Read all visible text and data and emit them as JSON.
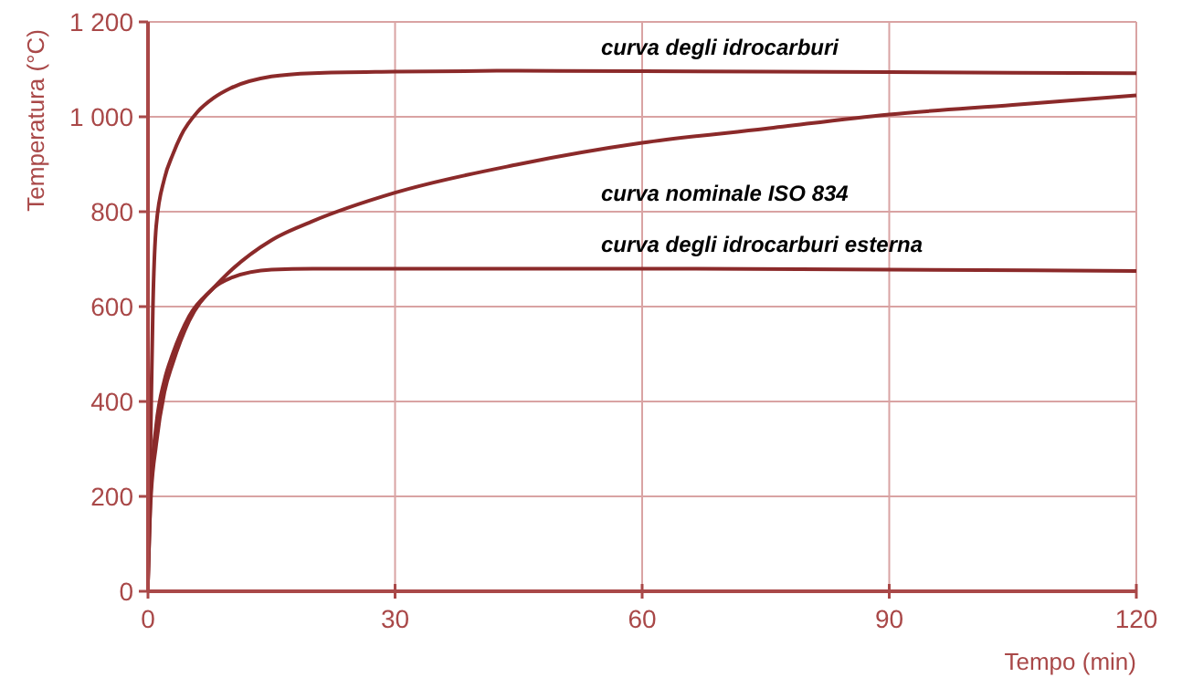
{
  "chart_data": {
    "type": "line",
    "xlabel": "Tempo (min)",
    "ylabel": "Temperatura (°C)",
    "xlim": [
      0,
      120
    ],
    "ylim": [
      0,
      1200
    ],
    "xticks": [
      0,
      30,
      60,
      90,
      120
    ],
    "yticks": [
      0,
      200,
      400,
      600,
      800,
      {
        "value": 1000,
        "label": "1 000"
      },
      {
        "value": 1200,
        "label": "1 200"
      }
    ],
    "grid": true,
    "marker": "none",
    "line_style": "solid",
    "series": [
      {
        "name": "curva degli idrocarburi",
        "color": "#8b2a2a",
        "x": [
          0,
          0.3,
          0.6,
          1,
          2,
          3,
          4,
          6,
          8,
          10,
          15,
          20,
          30,
          45,
          60,
          90,
          120
        ],
        "values": [
          20,
          300,
          600,
          770,
          870,
          920,
          960,
          1010,
          1040,
          1060,
          1085,
          1092,
          1095,
          1097,
          1096,
          1094,
          1092
        ]
      },
      {
        "name": "curva nominale ISO 834",
        "color": "#8b2a2a",
        "x": [
          0,
          0.3,
          1,
          2,
          3,
          5,
          8,
          10,
          15,
          20,
          30,
          45,
          60,
          75,
          90,
          105,
          120
        ],
        "values": [
          20,
          200,
          350,
          445,
          500,
          580,
          640,
          675,
          740,
          780,
          840,
          900,
          945,
          975,
          1005,
          1025,
          1045
        ]
      },
      {
        "name": "curva degli idrocarburi esterna",
        "color": "#8b2a2a",
        "x": [
          0,
          0.3,
          1,
          2,
          3,
          5,
          8,
          10,
          15,
          20,
          30,
          60,
          90,
          120
        ],
        "values": [
          20,
          180,
          310,
          420,
          480,
          570,
          640,
          660,
          678,
          680,
          680,
          680,
          678,
          675
        ]
      }
    ]
  }
}
